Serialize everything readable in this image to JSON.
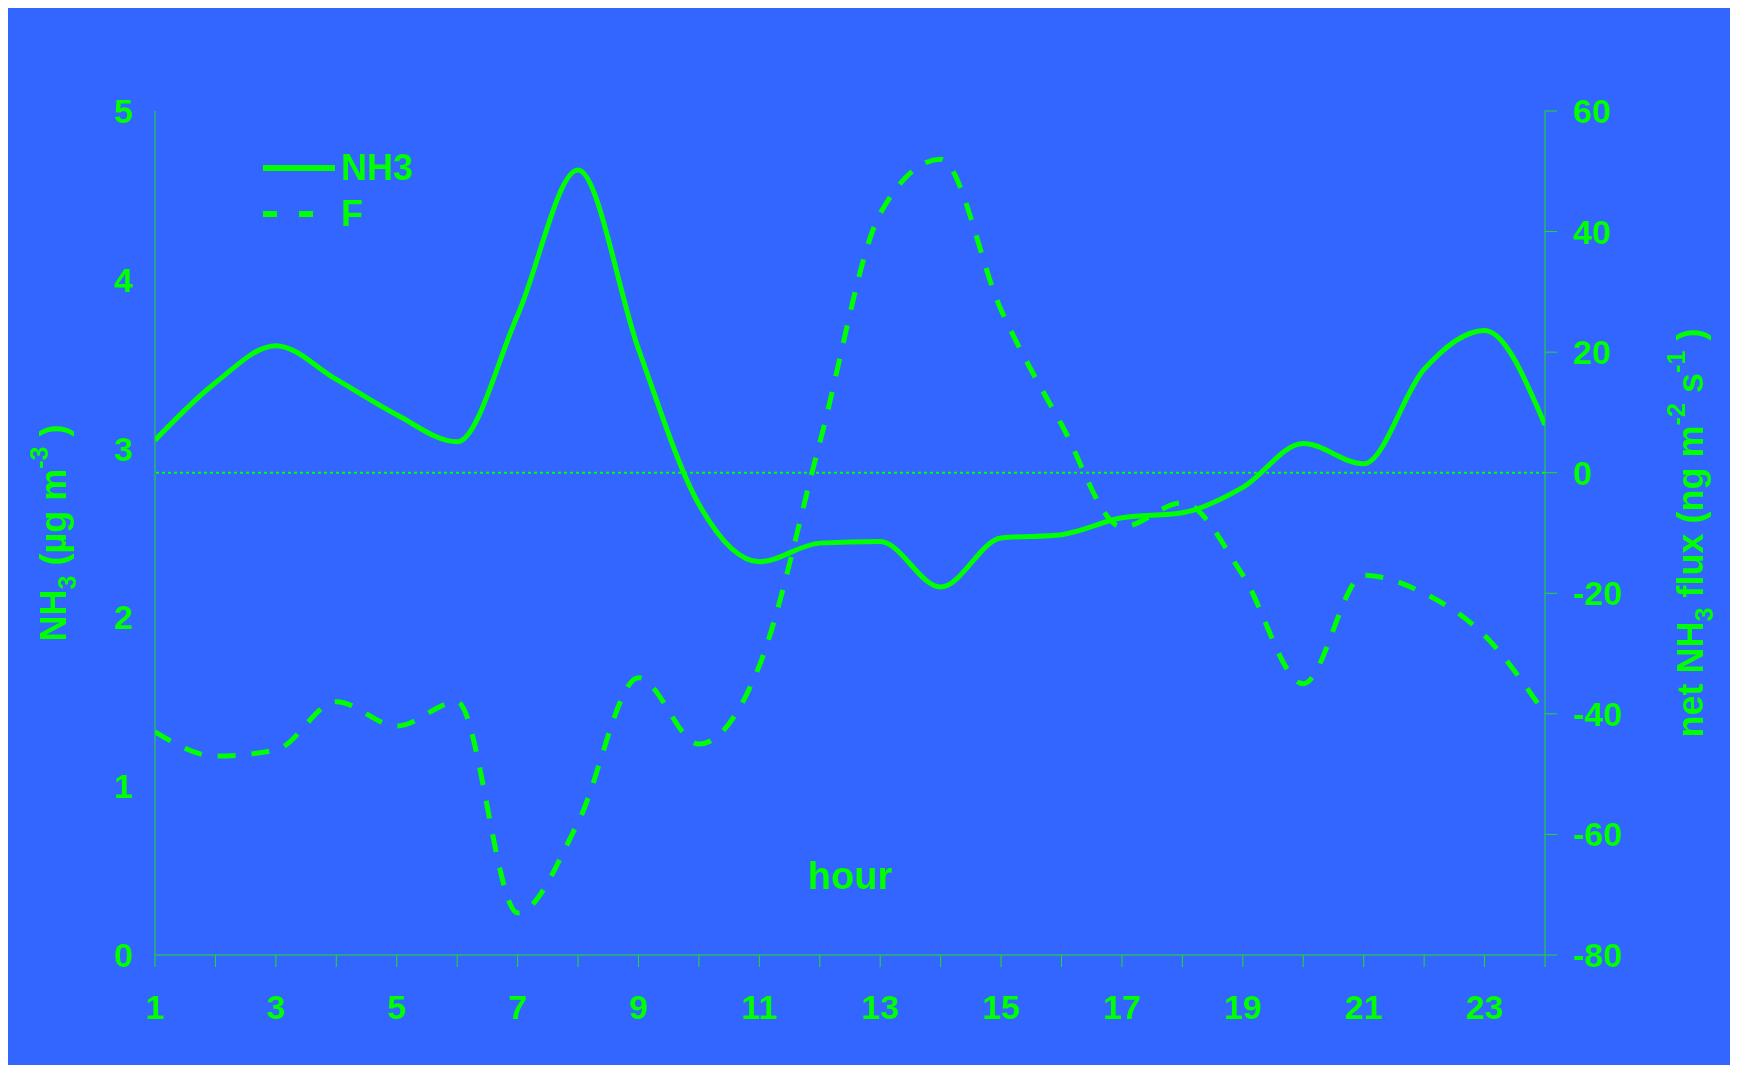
{
  "chart_data": {
    "type": "line",
    "xlabel": "hour",
    "ylabel": "NH$_{3}$ (µg m$^{-3}$)",
    "y2label": "net NH$_{3}$ flux (ng m$^{-2}$ s$^{-1}$)",
    "x": [
      1,
      2,
      3,
      4,
      5,
      6,
      7,
      8,
      9,
      10,
      11,
      12,
      13,
      14,
      15,
      16,
      17,
      18,
      19,
      20,
      21,
      22,
      23,
      24
    ],
    "series": [
      {
        "name": "NH3",
        "color": "#00ff00",
        "line_style": "solid",
        "values": [
          3.05,
          3.39,
          3.61,
          3.41,
          3.2,
          3.04,
          3.79,
          4.65,
          3.59,
          2.67,
          2.33,
          2.44,
          2.45,
          2.18,
          2.47,
          2.49,
          2.59,
          2.62,
          2.77,
          3.03,
          2.91,
          3.47,
          3.7,
          3.14
        ]
      },
      {
        "name": "F",
        "color": "#00ff00",
        "line_style": "dashed",
        "axis": "y2",
        "values": [
          -43,
          -47,
          -46,
          -38,
          -42,
          -38,
          -73,
          -58,
          -34,
          -45,
          -32,
          5,
          43,
          52,
          27,
          8,
          -9,
          -5,
          -17,
          -35,
          -17,
          -20,
          -27,
          -40
        ]
      }
    ],
    "xlim": [
      1,
      24
    ],
    "xticks": [
      1,
      {
        "value": 2,
        "label": null
      },
      3,
      {
        "value": 4,
        "label": null
      },
      5,
      {
        "value": 6,
        "label": null
      },
      7,
      {
        "value": 8,
        "label": null
      },
      9,
      {
        "value": 10,
        "label": null
      },
      11,
      {
        "value": 12,
        "label": null
      },
      13,
      {
        "value": 14,
        "label": null
      },
      15,
      {
        "value": 16,
        "label": null
      },
      17,
      {
        "value": 18,
        "label": null
      },
      19,
      {
        "value": 20,
        "label": null
      },
      21,
      {
        "value": 22,
        "label": null
      },
      23,
      {
        "value": 24,
        "label": null
      }
    ],
    "ylim": [
      0,
      5
    ],
    "yticks": [
      0,
      1,
      2,
      3,
      4,
      5
    ],
    "y2lim": [
      -80,
      60
    ],
    "y2ticks": [
      -80,
      -60,
      -40,
      -20,
      0,
      20,
      40,
      60
    ],
    "ref_lines": [
      {
        "axis": "y2",
        "value": 0,
        "color": "#00ff00",
        "line_style": "dotted"
      }
    ],
    "legend": "top left",
    "marker": "none"
  }
}
